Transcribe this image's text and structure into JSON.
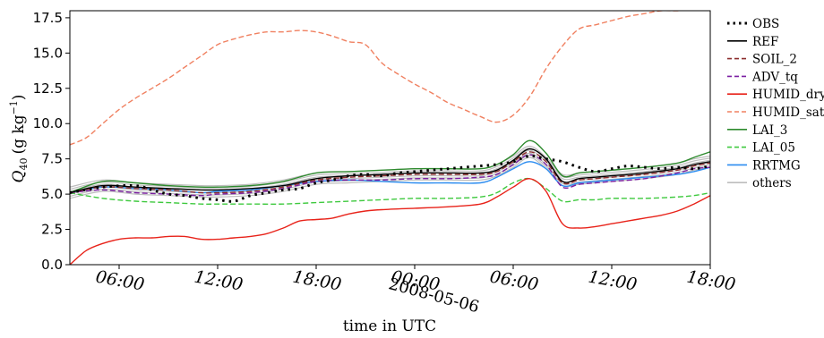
{
  "chart_data": {
    "type": "line",
    "xlabel": "time in UTC",
    "ylabel": "Q40 (g kg-1)",
    "ylabel_parts": {
      "symbol": "Q",
      "subscript": "40",
      "unit": "(g kg",
      "exponent": "−1",
      "close": ")"
    },
    "date_label": "2008-05-06",
    "x_unit": "hours since 2008-05-05 00:00 UTC",
    "xlim": [
      3,
      42
    ],
    "ylim": [
      0.0,
      18.0
    ],
    "y_ticks": [
      0.0,
      2.5,
      5.0,
      7.5,
      10.0,
      12.5,
      15.0,
      17.5
    ],
    "y_tick_labels": [
      "0.0",
      "2.5",
      "5.0",
      "7.5",
      "10.0",
      "12.5",
      "15.0",
      "17.5"
    ],
    "x_ticks": [
      6,
      12,
      18,
      24,
      30,
      36,
      42
    ],
    "x_tick_labels": [
      "06:00",
      "12:00",
      "18:00",
      "00:00",
      "06:00",
      "12:00",
      "18:00"
    ],
    "legend_position": "outside right",
    "grid": false,
    "series": [
      {
        "name": "OBS",
        "color": "#000000",
        "style": "dotted",
        "x": [
          3,
          5,
          7,
          8,
          9,
          10,
          11,
          12,
          13,
          14,
          15,
          16,
          17,
          18,
          19,
          20,
          21,
          22,
          23,
          24,
          25,
          26,
          27,
          28,
          29,
          30,
          31,
          32,
          33,
          34,
          35,
          36,
          37,
          38,
          39,
          40,
          41,
          42
        ],
        "y": [
          5.1,
          5.5,
          5.6,
          5.3,
          5.0,
          4.9,
          4.7,
          4.6,
          4.5,
          4.9,
          5.1,
          5.3,
          5.4,
          5.8,
          6.0,
          6.3,
          6.4,
          6.3,
          6.5,
          6.6,
          6.7,
          6.8,
          6.9,
          7.0,
          7.1,
          7.3,
          7.7,
          7.5,
          7.3,
          6.9,
          6.6,
          6.8,
          7.0,
          6.9,
          6.8,
          6.9,
          6.8,
          7.0
        ]
      },
      {
        "name": "REF",
        "color": "#000000",
        "style": "solid",
        "x": [
          3,
          5,
          7,
          9,
          11,
          12,
          14,
          16,
          18,
          20,
          22,
          24,
          26,
          28,
          29,
          30,
          31,
          32,
          33,
          34,
          35,
          36,
          38,
          40,
          41,
          42
        ],
        "y": [
          5.1,
          5.6,
          5.5,
          5.4,
          5.3,
          5.3,
          5.4,
          5.6,
          6.1,
          6.3,
          6.4,
          6.5,
          6.5,
          6.5,
          6.7,
          7.4,
          8.2,
          7.5,
          5.9,
          6.1,
          6.2,
          6.3,
          6.5,
          6.8,
          7.1,
          7.3
        ]
      },
      {
        "name": "SOIL_2",
        "color": "#8b2c2c",
        "style": "dashed",
        "x": [
          3,
          5,
          7,
          9,
          11,
          12,
          14,
          16,
          18,
          20,
          22,
          24,
          26,
          28,
          29,
          30,
          31,
          32,
          33,
          34,
          35,
          36,
          38,
          40,
          41,
          42
        ],
        "y": [
          5.1,
          5.5,
          5.4,
          5.3,
          5.1,
          5.1,
          5.2,
          5.5,
          6.0,
          6.2,
          6.3,
          6.4,
          6.4,
          6.4,
          6.6,
          7.3,
          8.0,
          7.3,
          5.8,
          6.0,
          6.1,
          6.2,
          6.4,
          6.7,
          7.0,
          7.2
        ]
      },
      {
        "name": "ADV_tq",
        "color": "#7b1fa2",
        "style": "dashed",
        "x": [
          3,
          5,
          7,
          9,
          11,
          12,
          14,
          16,
          18,
          20,
          22,
          24,
          26,
          28,
          29,
          30,
          31,
          32,
          33,
          34,
          35,
          36,
          38,
          40,
          41,
          42
        ],
        "y": [
          5.1,
          5.3,
          5.1,
          5.0,
          4.9,
          5.0,
          5.1,
          5.4,
          5.9,
          6.0,
          6.0,
          6.1,
          6.1,
          6.2,
          6.4,
          7.1,
          7.8,
          7.1,
          5.5,
          5.7,
          5.8,
          5.9,
          6.1,
          6.5,
          6.8,
          6.9
        ]
      },
      {
        "name": "HUMID_dry",
        "color": "#e8231a",
        "style": "solid",
        "x": [
          3,
          4,
          5,
          6,
          7,
          8,
          9,
          10,
          11,
          12,
          13,
          14,
          15,
          16,
          17,
          18,
          19,
          20,
          21,
          22,
          24,
          26,
          28,
          29,
          30,
          31,
          32,
          33,
          34,
          35,
          36,
          37,
          38,
          39,
          40,
          41,
          42
        ],
        "y": [
          0.0,
          1.0,
          1.5,
          1.8,
          1.9,
          1.9,
          2.0,
          2.0,
          1.8,
          1.8,
          1.9,
          2.0,
          2.2,
          2.6,
          3.1,
          3.2,
          3.3,
          3.6,
          3.8,
          3.9,
          4.0,
          4.1,
          4.3,
          4.8,
          5.5,
          6.1,
          5.2,
          2.9,
          2.6,
          2.7,
          2.9,
          3.1,
          3.3,
          3.5,
          3.8,
          4.3,
          4.9
        ]
      },
      {
        "name": "HUMID_sat",
        "color": "#f08060",
        "style": "dashed",
        "x": [
          3,
          4,
          5,
          6,
          7,
          8,
          9,
          10,
          11,
          12,
          13,
          14,
          15,
          16,
          17,
          18,
          19,
          20,
          21,
          22,
          23,
          24,
          25,
          26,
          27,
          28,
          29,
          30,
          31,
          32,
          33,
          34,
          35,
          36,
          37,
          38,
          39,
          40,
          41,
          42
        ],
        "y": [
          8.5,
          9.0,
          10.0,
          11.0,
          11.8,
          12.5,
          13.2,
          14.0,
          14.8,
          15.6,
          16.0,
          16.3,
          16.5,
          16.5,
          16.6,
          16.5,
          16.2,
          15.8,
          15.6,
          14.3,
          13.5,
          12.8,
          12.2,
          11.5,
          11.0,
          10.5,
          10.1,
          10.6,
          11.9,
          13.9,
          15.5,
          16.7,
          17.0,
          17.3,
          17.6,
          17.8,
          18.0,
          18.0,
          18.1,
          18.2
        ]
      },
      {
        "name": "LAI_3",
        "color": "#2e8b2e",
        "style": "solid",
        "x": [
          3,
          5,
          7,
          9,
          11,
          12,
          14,
          16,
          18,
          20,
          22,
          24,
          26,
          28,
          29,
          30,
          31,
          32,
          33,
          34,
          35,
          36,
          38,
          40,
          41,
          42
        ],
        "y": [
          5.1,
          5.9,
          5.8,
          5.6,
          5.5,
          5.5,
          5.6,
          5.9,
          6.5,
          6.6,
          6.7,
          6.8,
          6.8,
          6.8,
          7.1,
          7.8,
          8.8,
          7.9,
          6.3,
          6.5,
          6.6,
          6.7,
          6.9,
          7.2,
          7.6,
          8.0
        ]
      },
      {
        "name": "LAI_05",
        "color": "#3ec93e",
        "style": "dashed",
        "x": [
          3,
          5,
          7,
          9,
          11,
          12,
          14,
          16,
          18,
          20,
          22,
          24,
          26,
          28,
          29,
          30,
          31,
          32,
          33,
          34,
          35,
          36,
          38,
          40,
          41,
          42
        ],
        "y": [
          5.1,
          4.7,
          4.5,
          4.4,
          4.3,
          4.3,
          4.3,
          4.3,
          4.4,
          4.5,
          4.6,
          4.7,
          4.7,
          4.8,
          5.1,
          5.8,
          6.1,
          5.4,
          4.5,
          4.6,
          4.6,
          4.7,
          4.7,
          4.8,
          4.9,
          5.1
        ]
      },
      {
        "name": "RRTMG",
        "color": "#2b8cf0",
        "style": "solid",
        "x": [
          3,
          5,
          7,
          9,
          11,
          12,
          14,
          16,
          18,
          20,
          22,
          24,
          26,
          28,
          29,
          30,
          31,
          32,
          33,
          34,
          35,
          36,
          38,
          40,
          41,
          42
        ],
        "y": [
          5.1,
          5.5,
          5.4,
          5.3,
          5.1,
          5.2,
          5.3,
          5.6,
          5.9,
          6.0,
          5.9,
          5.8,
          5.8,
          5.8,
          6.2,
          6.8,
          7.3,
          6.8,
          5.6,
          5.8,
          5.9,
          6.0,
          6.2,
          6.4,
          6.6,
          6.9
        ]
      },
      {
        "name": "others",
        "color": "#bdbdbd",
        "style": "solid",
        "x": [
          3,
          5,
          7,
          9,
          11,
          12,
          14,
          16,
          18,
          20,
          22,
          24,
          26,
          28,
          29,
          30,
          31,
          32,
          33,
          34,
          35,
          36,
          38,
          40,
          41,
          42
        ],
        "y": [
          5.1,
          5.6,
          5.4,
          5.3,
          5.2,
          5.2,
          5.3,
          5.6,
          6.1,
          6.2,
          6.3,
          6.4,
          6.4,
          6.4,
          6.7,
          7.3,
          8.0,
          7.2,
          6.0,
          6.1,
          6.2,
          6.3,
          6.5,
          6.8,
          7.1,
          7.3
        ]
      }
    ],
    "others_bundle_offsets": [
      -0.4,
      -0.25,
      -0.1,
      0.1,
      0.25,
      0.4
    ]
  }
}
